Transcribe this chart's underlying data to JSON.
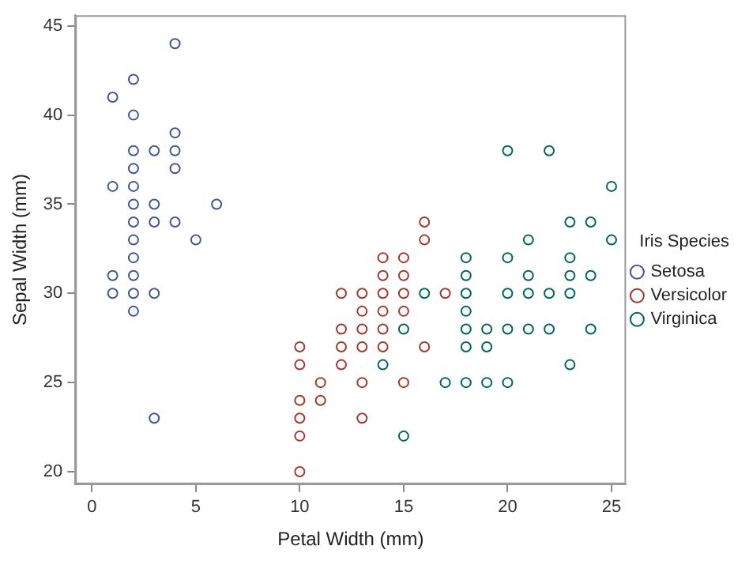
{
  "chart_data": {
    "type": "scatter",
    "xlabel": "Petal Width (mm)",
    "ylabel": "Sepal Width (mm)",
    "legend_title": "Iris Species",
    "legend": "right",
    "grid": false,
    "marker": "circle",
    "xlim": [
      -0.8,
      25.7
    ],
    "ylim": [
      19.3,
      45.6
    ],
    "xticks": [
      0,
      5,
      10,
      15,
      20,
      25
    ],
    "yticks": [
      20,
      25,
      30,
      35,
      40,
      45
    ],
    "series": [
      {
        "name": "Setosa",
        "color": "#445694",
        "x": [
          4,
          2,
          1,
          2,
          4,
          2,
          3,
          4,
          2,
          4,
          1,
          2,
          2,
          3,
          6,
          2,
          3,
          4,
          2,
          5,
          2,
          1,
          2,
          1,
          2,
          3,
          2,
          3
        ],
        "values": [
          44,
          42,
          41,
          40,
          39,
          38,
          38,
          38,
          37,
          37,
          36,
          36,
          35,
          35,
          35,
          34,
          34,
          34,
          33,
          33,
          32,
          31,
          31,
          30,
          30,
          30,
          29,
          23
        ]
      },
      {
        "name": "Versicolor",
        "color": "#a23a2e",
        "x": [
          16,
          16,
          14,
          15,
          14,
          15,
          12,
          13,
          14,
          15,
          17,
          13,
          14,
          15,
          12,
          13,
          14,
          10,
          12,
          13,
          14,
          16,
          10,
          12,
          11,
          13,
          15,
          10,
          11,
          10,
          13,
          10,
          10
        ],
        "values": [
          34,
          33,
          32,
          32,
          31,
          31,
          30,
          30,
          30,
          30,
          30,
          29,
          29,
          29,
          28,
          28,
          28,
          27,
          27,
          27,
          27,
          27,
          26,
          26,
          25,
          25,
          25,
          24,
          24,
          23,
          23,
          22,
          20
        ]
      },
      {
        "name": "Virginica",
        "color": "#01665e",
        "x": [
          20,
          22,
          25,
          23,
          24,
          21,
          25,
          18,
          20,
          23,
          18,
          21,
          23,
          24,
          16,
          18,
          20,
          21,
          22,
          23,
          18,
          15,
          18,
          19,
          20,
          21,
          22,
          24,
          18,
          19,
          14,
          23,
          17,
          18,
          19,
          20,
          15
        ],
        "values": [
          38,
          38,
          36,
          34,
          34,
          33,
          33,
          32,
          32,
          32,
          31,
          31,
          31,
          31,
          30,
          30,
          30,
          30,
          30,
          30,
          29,
          28,
          28,
          28,
          28,
          28,
          28,
          28,
          27,
          27,
          26,
          26,
          25,
          25,
          25,
          25,
          22
        ]
      }
    ]
  }
}
